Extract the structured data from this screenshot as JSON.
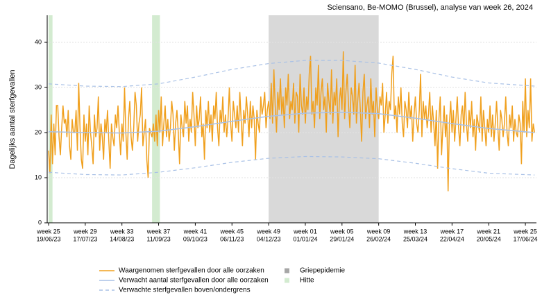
{
  "chart_data": {
    "type": "line",
    "title": "Sciensano, Be-MOMO (Brussel), analyse van week 26, 2024",
    "y_label": "Dagelijks aantal sterfgevallen",
    "ylim": [
      0,
      46
    ],
    "yticks": [
      0,
      10,
      20,
      30,
      40
    ],
    "grid": true,
    "xlim": [
      0,
      372
    ],
    "xticks": [
      {
        "value": 0,
        "label": [
          "week 25",
          "19/06/23"
        ]
      },
      {
        "value": 28,
        "label": [
          "week 29",
          "17/07/23"
        ]
      },
      {
        "value": 56,
        "label": [
          "week 33",
          "14/08/23"
        ]
      },
      {
        "value": 84,
        "label": [
          "week 37",
          "11/09/23"
        ]
      },
      {
        "value": 112,
        "label": [
          "week 41",
          "09/10/23"
        ]
      },
      {
        "value": 140,
        "label": [
          "week 45",
          "06/11/23"
        ]
      },
      {
        "value": 168,
        "label": [
          "week 49",
          "04/12/23"
        ]
      },
      {
        "value": 196,
        "label": [
          "week 01",
          "01/01/24"
        ]
      },
      {
        "value": 224,
        "label": [
          "week 05",
          "29/01/24"
        ]
      },
      {
        "value": 252,
        "label": [
          "week 09",
          "26/02/24"
        ]
      },
      {
        "value": 280,
        "label": [
          "week 13",
          "25/03/24"
        ]
      },
      {
        "value": 308,
        "label": [
          "week 17",
          "22/04/24"
        ]
      },
      {
        "value": 336,
        "label": [
          "week 21",
          "20/05/24"
        ]
      },
      {
        "value": 364,
        "label": [
          "week 25",
          "17/06/24"
        ]
      }
    ],
    "shading": [
      {
        "name": "Griepepidemie",
        "color": "#d9d9d9",
        "ranges": [
          [
            168,
            252
          ]
        ]
      },
      {
        "name": "Hitte",
        "color": "#d3ebd0",
        "ranges": [
          [
            0,
            3
          ],
          [
            79,
            85
          ]
        ]
      }
    ],
    "series": [
      {
        "name": "Waargenomen sterfgevallen door alle oorzaken",
        "color": "#f0a01e",
        "values": [
          16,
          11,
          24,
          13,
          22,
          15,
          26,
          26,
          19,
          15,
          21,
          26,
          22,
          23,
          19,
          25,
          17,
          14,
          23,
          20,
          20,
          25,
          16,
          31,
          21,
          14,
          12,
          24,
          18,
          22,
          15,
          26,
          20,
          17,
          13,
          24,
          19,
          21,
          28,
          16,
          22,
          19,
          14,
          23,
          20,
          25,
          18,
          12,
          22,
          19,
          17,
          24,
          21,
          26,
          20,
          15,
          22,
          18,
          30,
          20,
          14,
          23,
          27,
          19,
          16,
          21,
          29,
          26,
          18,
          22,
          24,
          30,
          17,
          20,
          23,
          14,
          10,
          21,
          20,
          19,
          22,
          18,
          24,
          17,
          25,
          20,
          28,
          17,
          22,
          26,
          19,
          23,
          18,
          21,
          27,
          24,
          16,
          22,
          25,
          20,
          13,
          24,
          21,
          19,
          27,
          22,
          26,
          18,
          23,
          20,
          29,
          24,
          17,
          26,
          21,
          23,
          28,
          19,
          22,
          14,
          25,
          21,
          27,
          20,
          24,
          18,
          26,
          23,
          29,
          21,
          17,
          25,
          22,
          28,
          20,
          24,
          19,
          23,
          30,
          22,
          18,
          27,
          24,
          21,
          26,
          20,
          29,
          23,
          17,
          25,
          22,
          28,
          24,
          19,
          27,
          21,
          26,
          23,
          14,
          25,
          22,
          20,
          28,
          24,
          26,
          29,
          21,
          25,
          27,
          23,
          31,
          22,
          34,
          26,
          20,
          29,
          25,
          32,
          24,
          28,
          21,
          30,
          26,
          33,
          23,
          27,
          25,
          31,
          22,
          29,
          28,
          20,
          33,
          26,
          24,
          30,
          22,
          28,
          25,
          33,
          37,
          24,
          27,
          21,
          30,
          26,
          35,
          23,
          29,
          32,
          25,
          28,
          20,
          31,
          27,
          24,
          34,
          22,
          29,
          26,
          32,
          19,
          27,
          30,
          25,
          38,
          23,
          29,
          33,
          26,
          21,
          30,
          28,
          24,
          35,
          22,
          27,
          31,
          25,
          18,
          29,
          33,
          23,
          26,
          28,
          21,
          32,
          24,
          27,
          19,
          30,
          25,
          23,
          28,
          26,
          31,
          20,
          24,
          29,
          22,
          27,
          25,
          33,
          37,
          23,
          26,
          20,
          28,
          24,
          30,
          22,
          19,
          27,
          25,
          21,
          29,
          23,
          26,
          18,
          24,
          28,
          22,
          20,
          25,
          33,
          19,
          27,
          23,
          26,
          21,
          24,
          29,
          20,
          26,
          22,
          17,
          25,
          12,
          23,
          28,
          15,
          21,
          26,
          19,
          24,
          7,
          22,
          27,
          20,
          25,
          18,
          23,
          28,
          21,
          17,
          24,
          26,
          20,
          29,
          22,
          18,
          25,
          21,
          27,
          19,
          23,
          16,
          24,
          22,
          20,
          28,
          18,
          25,
          21,
          17,
          23,
          20,
          26,
          19,
          24,
          18,
          22,
          27,
          21,
          16,
          25,
          23,
          19,
          22,
          28,
          20,
          17,
          24,
          21,
          26,
          18,
          23,
          20,
          19,
          24,
          22,
          13,
          27,
          20,
          32,
          19,
          25,
          21,
          32,
          18,
          22,
          20
        ]
      },
      {
        "name": "Verwacht aantal sterfgevallen door alle oorzaken",
        "color": "#a9c1e6",
        "x": [
          0,
          28,
          56,
          84,
          112,
          140,
          168,
          196,
          224,
          252,
          280,
          308,
          336,
          371
        ],
        "values": [
          20.2,
          20.0,
          19.9,
          20.3,
          21.3,
          22.5,
          23.6,
          24.3,
          24.5,
          24.2,
          23.2,
          22.0,
          20.9,
          20.0
        ]
      },
      {
        "name": "Verwachte sterfgevallen boven/ondergrens",
        "color": "#a9c1e6",
        "dashed": true,
        "x": [
          0,
          28,
          56,
          84,
          112,
          140,
          168,
          196,
          224,
          252,
          280,
          308,
          336,
          371
        ],
        "upper": [
          30.8,
          30.3,
          30.2,
          30.8,
          32.3,
          34.0,
          35.3,
          36.0,
          36.0,
          35.4,
          34.0,
          32.3,
          31.0,
          30.3
        ],
        "lower": [
          11.2,
          10.7,
          10.6,
          11.2,
          12.2,
          13.4,
          14.3,
          14.7,
          14.6,
          14.2,
          13.2,
          12.0,
          11.0,
          10.6
        ]
      }
    ]
  }
}
